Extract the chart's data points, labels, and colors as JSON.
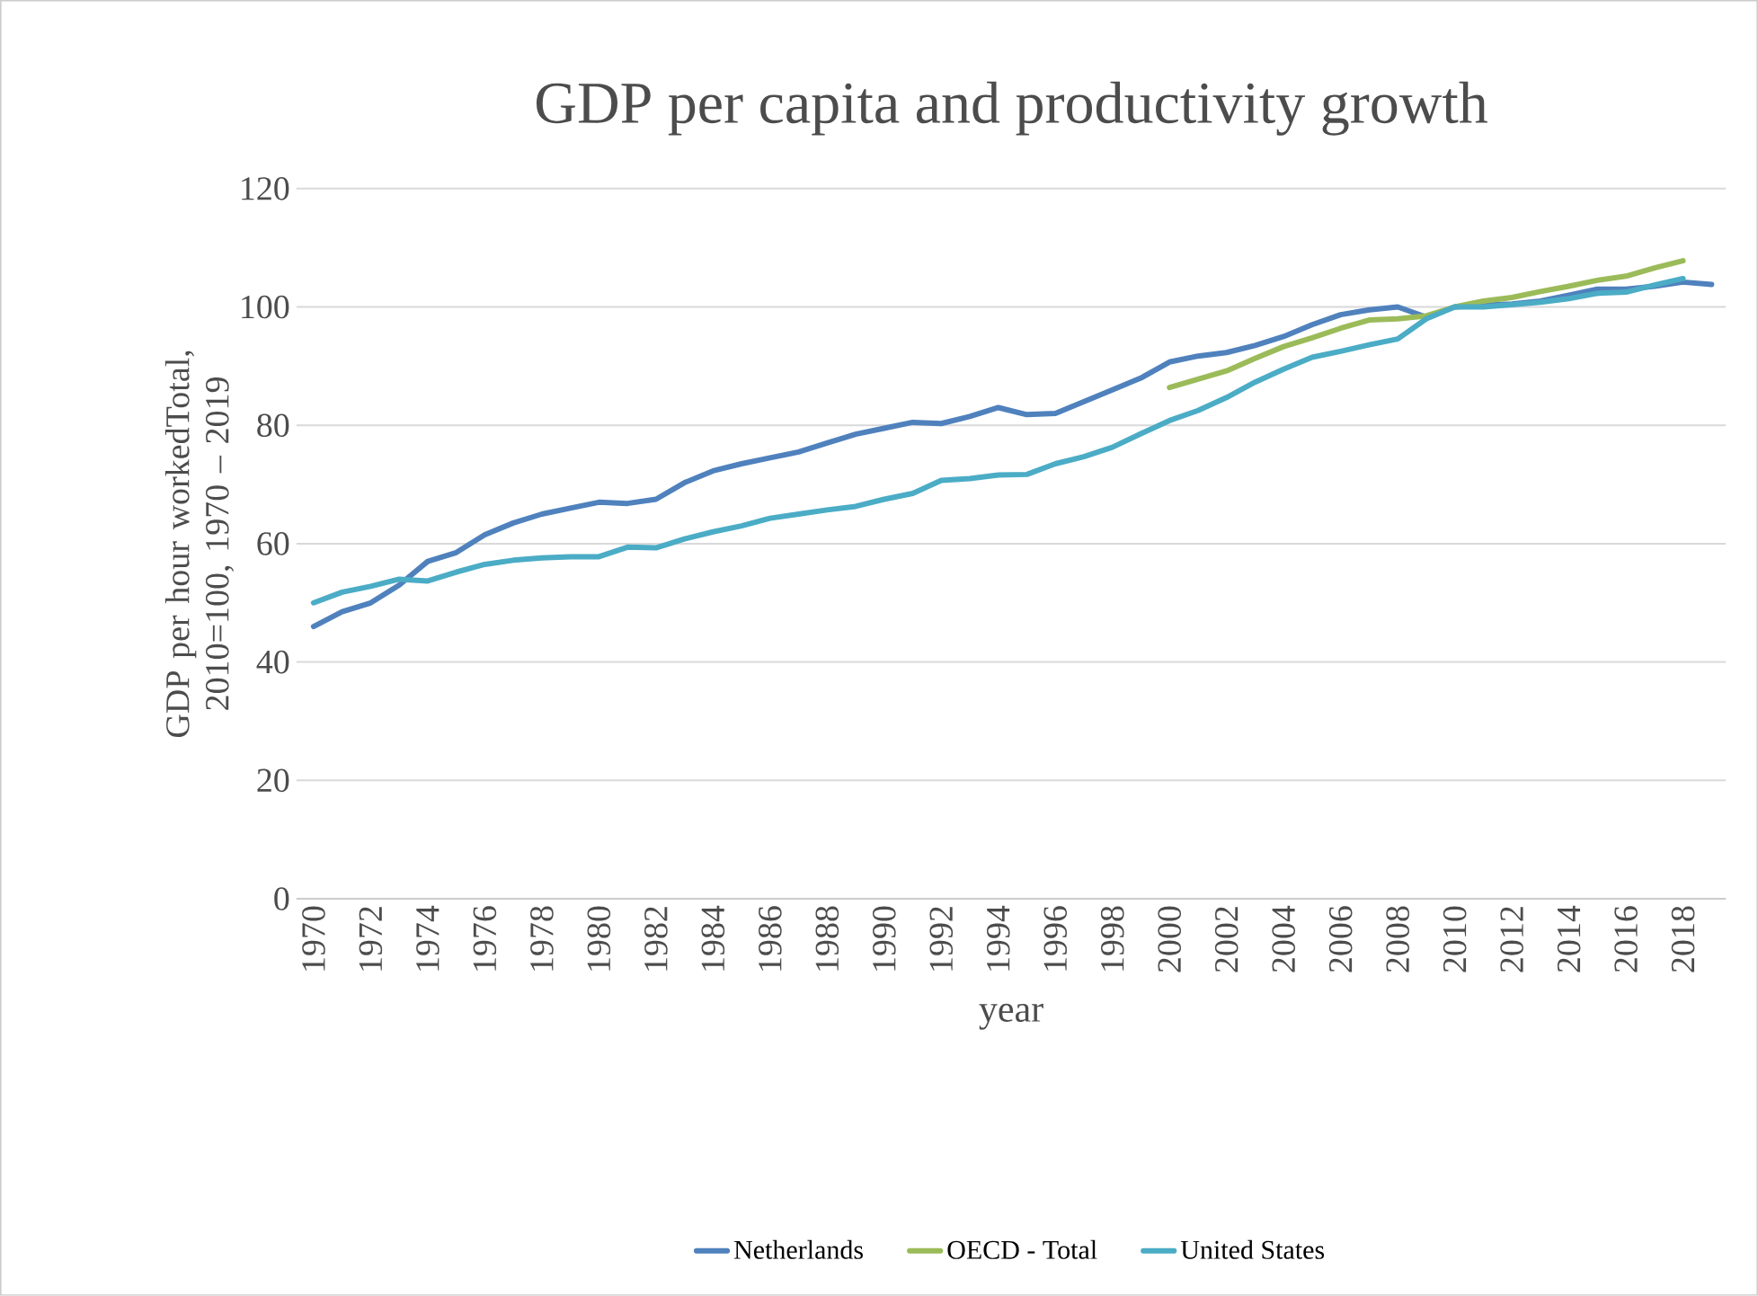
{
  "chart_data": {
    "type": "line",
    "title": "GDP per capita and productivity growth",
    "xlabel": "year",
    "ylabel": "GDP per hour workedTotal, 2010=100, 1970 – 2019",
    "categories": [
      "1970",
      null,
      "1972",
      null,
      "1974",
      null,
      "1976",
      null,
      "1978",
      null,
      "1980",
      null,
      "1982",
      null,
      "1984",
      null,
      "1986",
      null,
      "1988",
      null,
      "1990",
      null,
      "1992",
      null,
      "1994",
      null,
      "1996",
      null,
      "1998",
      null,
      "2000",
      null,
      "2002",
      null,
      "2004",
      null,
      "2006",
      null,
      "2008",
      null,
      "2010",
      null,
      "2012",
      null,
      "2014",
      null,
      "2016",
      null,
      "2018",
      null
    ],
    "series": [
      {
        "name": "Netherlands",
        "color": "#4f81bd",
        "values": [
          46,
          48.5,
          50,
          53,
          57,
          58.5,
          61.5,
          63.5,
          65,
          66,
          67,
          66.8,
          67.5,
          70.3,
          72.3,
          73.5,
          74.5,
          75.5,
          77,
          78.5,
          79.5,
          80.5,
          80.3,
          81.5,
          83,
          81.8,
          82,
          84,
          86,
          88,
          90.7,
          91.7,
          92.3,
          93.5,
          95,
          97,
          98.7,
          99.5,
          100,
          98.3,
          100,
          100.3,
          100.5,
          101,
          102,
          103,
          103,
          103.5,
          104.2,
          103.8
        ]
      },
      {
        "name": "OECD - Total",
        "color": "#9bbb59",
        "values": [
          null,
          null,
          null,
          null,
          null,
          null,
          null,
          null,
          null,
          null,
          null,
          null,
          null,
          null,
          null,
          null,
          null,
          null,
          null,
          null,
          null,
          null,
          null,
          null,
          null,
          null,
          null,
          null,
          null,
          null,
          86.4,
          87.8,
          89.2,
          91.3,
          93.3,
          94.8,
          96.4,
          97.8,
          98,
          98.5,
          100,
          101,
          101.6,
          102.6,
          103.5,
          104.5,
          105.2,
          106.6,
          107.8,
          null
        ]
      },
      {
        "name": "United States",
        "color": "#4bacc6",
        "values": [
          50,
          51.8,
          52.8,
          54,
          53.7,
          55.2,
          56.5,
          57.2,
          57.6,
          57.8,
          57.8,
          59.4,
          59.3,
          60.8,
          62,
          63,
          64.3,
          65,
          65.7,
          66.3,
          67.5,
          68.5,
          70.7,
          71,
          71.6,
          71.7,
          73.5,
          74.7,
          76.3,
          78.6,
          80.8,
          82.5,
          84.7,
          87.3,
          89.5,
          91.5,
          92.5,
          93.6,
          94.6,
          98,
          100,
          100,
          100.4,
          100.8,
          101.4,
          102.3,
          102.5,
          103.7,
          104.8,
          null
        ]
      }
    ],
    "ylim": [
      0,
      120
    ],
    "yticks": [
      0,
      20,
      40,
      60,
      80,
      100,
      120
    ],
    "grid": "y",
    "legend": "bottom",
    "marker": "none",
    "line_style": "solid"
  }
}
